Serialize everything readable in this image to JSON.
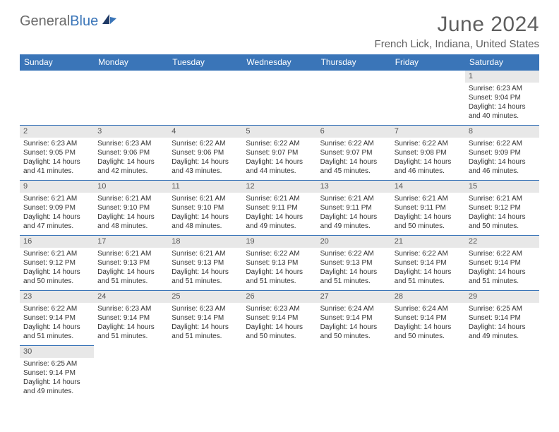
{
  "brand": {
    "part1": "General",
    "part2": "Blue"
  },
  "title": "June 2024",
  "location": "French Lick, Indiana, United States",
  "headers": [
    "Sunday",
    "Monday",
    "Tuesday",
    "Wednesday",
    "Thursday",
    "Friday",
    "Saturday"
  ],
  "colors": {
    "header_bg": "#3a75b8",
    "header_text": "#ffffff",
    "daynum_bg": "#e8e8e8",
    "text": "#333333",
    "title_color": "#5f5f5f"
  },
  "weeks": [
    [
      {
        "n": "",
        "lines": [
          "",
          "",
          "",
          ""
        ]
      },
      {
        "n": "",
        "lines": [
          "",
          "",
          "",
          ""
        ]
      },
      {
        "n": "",
        "lines": [
          "",
          "",
          "",
          ""
        ]
      },
      {
        "n": "",
        "lines": [
          "",
          "",
          "",
          ""
        ]
      },
      {
        "n": "",
        "lines": [
          "",
          "",
          "",
          ""
        ]
      },
      {
        "n": "",
        "lines": [
          "",
          "",
          "",
          ""
        ]
      },
      {
        "n": "1",
        "lines": [
          "Sunrise: 6:23 AM",
          "Sunset: 9:04 PM",
          "Daylight: 14 hours",
          "and 40 minutes."
        ]
      }
    ],
    [
      {
        "n": "2",
        "lines": [
          "Sunrise: 6:23 AM",
          "Sunset: 9:05 PM",
          "Daylight: 14 hours",
          "and 41 minutes."
        ]
      },
      {
        "n": "3",
        "lines": [
          "Sunrise: 6:23 AM",
          "Sunset: 9:06 PM",
          "Daylight: 14 hours",
          "and 42 minutes."
        ]
      },
      {
        "n": "4",
        "lines": [
          "Sunrise: 6:22 AM",
          "Sunset: 9:06 PM",
          "Daylight: 14 hours",
          "and 43 minutes."
        ]
      },
      {
        "n": "5",
        "lines": [
          "Sunrise: 6:22 AM",
          "Sunset: 9:07 PM",
          "Daylight: 14 hours",
          "and 44 minutes."
        ]
      },
      {
        "n": "6",
        "lines": [
          "Sunrise: 6:22 AM",
          "Sunset: 9:07 PM",
          "Daylight: 14 hours",
          "and 45 minutes."
        ]
      },
      {
        "n": "7",
        "lines": [
          "Sunrise: 6:22 AM",
          "Sunset: 9:08 PM",
          "Daylight: 14 hours",
          "and 46 minutes."
        ]
      },
      {
        "n": "8",
        "lines": [
          "Sunrise: 6:22 AM",
          "Sunset: 9:09 PM",
          "Daylight: 14 hours",
          "and 46 minutes."
        ]
      }
    ],
    [
      {
        "n": "9",
        "lines": [
          "Sunrise: 6:21 AM",
          "Sunset: 9:09 PM",
          "Daylight: 14 hours",
          "and 47 minutes."
        ]
      },
      {
        "n": "10",
        "lines": [
          "Sunrise: 6:21 AM",
          "Sunset: 9:10 PM",
          "Daylight: 14 hours",
          "and 48 minutes."
        ]
      },
      {
        "n": "11",
        "lines": [
          "Sunrise: 6:21 AM",
          "Sunset: 9:10 PM",
          "Daylight: 14 hours",
          "and 48 minutes."
        ]
      },
      {
        "n": "12",
        "lines": [
          "Sunrise: 6:21 AM",
          "Sunset: 9:11 PM",
          "Daylight: 14 hours",
          "and 49 minutes."
        ]
      },
      {
        "n": "13",
        "lines": [
          "Sunrise: 6:21 AM",
          "Sunset: 9:11 PM",
          "Daylight: 14 hours",
          "and 49 minutes."
        ]
      },
      {
        "n": "14",
        "lines": [
          "Sunrise: 6:21 AM",
          "Sunset: 9:11 PM",
          "Daylight: 14 hours",
          "and 50 minutes."
        ]
      },
      {
        "n": "15",
        "lines": [
          "Sunrise: 6:21 AM",
          "Sunset: 9:12 PM",
          "Daylight: 14 hours",
          "and 50 minutes."
        ]
      }
    ],
    [
      {
        "n": "16",
        "lines": [
          "Sunrise: 6:21 AM",
          "Sunset: 9:12 PM",
          "Daylight: 14 hours",
          "and 50 minutes."
        ]
      },
      {
        "n": "17",
        "lines": [
          "Sunrise: 6:21 AM",
          "Sunset: 9:13 PM",
          "Daylight: 14 hours",
          "and 51 minutes."
        ]
      },
      {
        "n": "18",
        "lines": [
          "Sunrise: 6:21 AM",
          "Sunset: 9:13 PM",
          "Daylight: 14 hours",
          "and 51 minutes."
        ]
      },
      {
        "n": "19",
        "lines": [
          "Sunrise: 6:22 AM",
          "Sunset: 9:13 PM",
          "Daylight: 14 hours",
          "and 51 minutes."
        ]
      },
      {
        "n": "20",
        "lines": [
          "Sunrise: 6:22 AM",
          "Sunset: 9:13 PM",
          "Daylight: 14 hours",
          "and 51 minutes."
        ]
      },
      {
        "n": "21",
        "lines": [
          "Sunrise: 6:22 AM",
          "Sunset: 9:14 PM",
          "Daylight: 14 hours",
          "and 51 minutes."
        ]
      },
      {
        "n": "22",
        "lines": [
          "Sunrise: 6:22 AM",
          "Sunset: 9:14 PM",
          "Daylight: 14 hours",
          "and 51 minutes."
        ]
      }
    ],
    [
      {
        "n": "23",
        "lines": [
          "Sunrise: 6:22 AM",
          "Sunset: 9:14 PM",
          "Daylight: 14 hours",
          "and 51 minutes."
        ]
      },
      {
        "n": "24",
        "lines": [
          "Sunrise: 6:23 AM",
          "Sunset: 9:14 PM",
          "Daylight: 14 hours",
          "and 51 minutes."
        ]
      },
      {
        "n": "25",
        "lines": [
          "Sunrise: 6:23 AM",
          "Sunset: 9:14 PM",
          "Daylight: 14 hours",
          "and 51 minutes."
        ]
      },
      {
        "n": "26",
        "lines": [
          "Sunrise: 6:23 AM",
          "Sunset: 9:14 PM",
          "Daylight: 14 hours",
          "and 50 minutes."
        ]
      },
      {
        "n": "27",
        "lines": [
          "Sunrise: 6:24 AM",
          "Sunset: 9:14 PM",
          "Daylight: 14 hours",
          "and 50 minutes."
        ]
      },
      {
        "n": "28",
        "lines": [
          "Sunrise: 6:24 AM",
          "Sunset: 9:14 PM",
          "Daylight: 14 hours",
          "and 50 minutes."
        ]
      },
      {
        "n": "29",
        "lines": [
          "Sunrise: 6:25 AM",
          "Sunset: 9:14 PM",
          "Daylight: 14 hours",
          "and 49 minutes."
        ]
      }
    ],
    [
      {
        "n": "30",
        "lines": [
          "Sunrise: 6:25 AM",
          "Sunset: 9:14 PM",
          "Daylight: 14 hours",
          "and 49 minutes."
        ]
      },
      {
        "n": "",
        "lines": [
          "",
          "",
          "",
          ""
        ]
      },
      {
        "n": "",
        "lines": [
          "",
          "",
          "",
          ""
        ]
      },
      {
        "n": "",
        "lines": [
          "",
          "",
          "",
          ""
        ]
      },
      {
        "n": "",
        "lines": [
          "",
          "",
          "",
          ""
        ]
      },
      {
        "n": "",
        "lines": [
          "",
          "",
          "",
          ""
        ]
      },
      {
        "n": "",
        "lines": [
          "",
          "",
          "",
          ""
        ]
      }
    ]
  ]
}
